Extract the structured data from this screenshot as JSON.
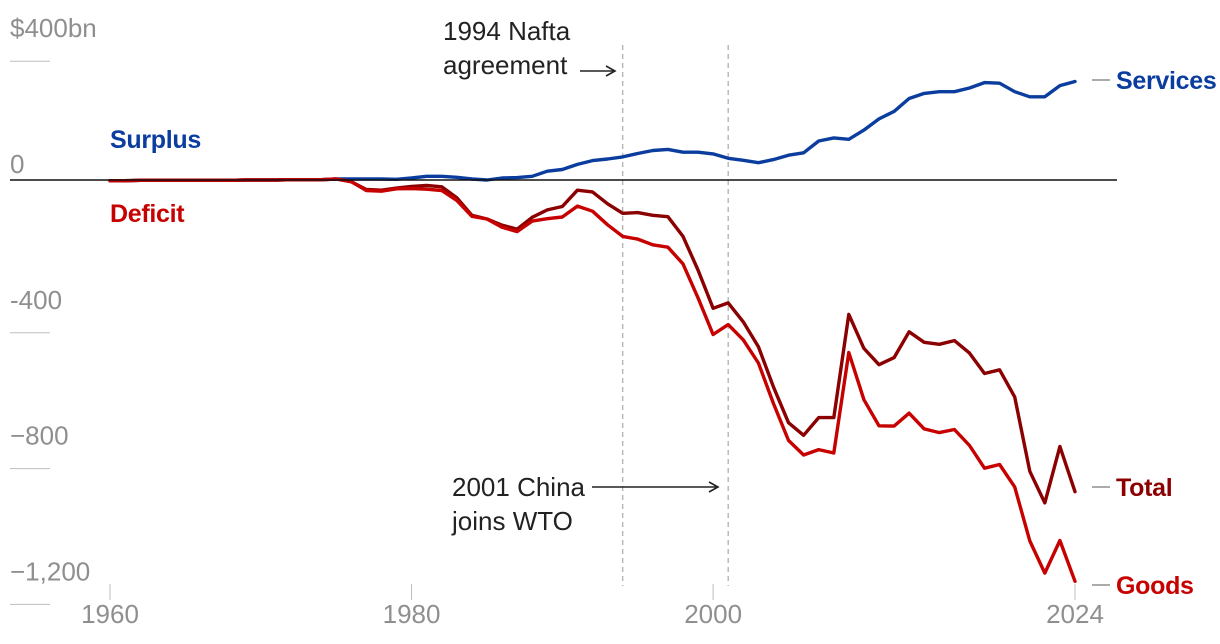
{
  "chart_data": {
    "type": "line",
    "xlim": [
      1960,
      2024
    ],
    "ylim": [
      -1300,
      400
    ],
    "x_ticks": [
      {
        "value": 1960,
        "label": "1960"
      },
      {
        "value": 1980,
        "label": "1980"
      },
      {
        "value": 2000,
        "label": "2000"
      },
      {
        "value": 2024,
        "label": "2024"
      }
    ],
    "y_ticks": [
      {
        "value": 400,
        "label": "$400bn"
      },
      {
        "value": 0,
        "label": "0"
      },
      {
        "value": -400,
        "label": "-400"
      },
      {
        "value": -800,
        "label": "−800"
      },
      {
        "value": -1200,
        "label": "−1,200"
      }
    ],
    "zone_labels": {
      "surplus": {
        "text": "Surplus",
        "color": "#0a3d9e"
      },
      "deficit": {
        "text": "Deficit",
        "color": "#c70000"
      }
    },
    "annotations": [
      {
        "year": 1994,
        "lines": [
          "1994 Nafta",
          "agreement"
        ],
        "arrow": "right"
      },
      {
        "year": 2001,
        "lines": [
          "2001 China",
          "joins WTO"
        ],
        "arrow": "right"
      }
    ],
    "series": [
      {
        "name": "Services",
        "color": "#0a3d9e",
        "x": [
          1960,
          1961,
          1962,
          1963,
          1964,
          1965,
          1966,
          1967,
          1968,
          1969,
          1970,
          1971,
          1972,
          1973,
          1974,
          1975,
          1976,
          1977,
          1978,
          1979,
          1980,
          1981,
          1982,
          1983,
          1984,
          1985,
          1986,
          1987,
          1988,
          1989,
          1990,
          1991,
          1992,
          1993,
          1994,
          1995,
          1996,
          1997,
          1998,
          1999,
          2000,
          2001,
          2002,
          2003,
          2004,
          2005,
          2006,
          2007,
          2008,
          2009,
          2010,
          2011,
          2012,
          2013,
          2014,
          2015,
          2016,
          2017,
          2018,
          2019,
          2020,
          2021,
          2022,
          2023,
          2024
        ],
        "values": [
          -2,
          -2,
          -1,
          -1,
          -1,
          -1,
          -1,
          -1,
          -1,
          0,
          0,
          0,
          1,
          1,
          1,
          3,
          3,
          3,
          3,
          2,
          6,
          11,
          11,
          8,
          3,
          0,
          6,
          7,
          11,
          26,
          31,
          46,
          57,
          62,
          68,
          78,
          87,
          90,
          82,
          82,
          77,
          64,
          58,
          51,
          60,
          73,
          80,
          115,
          124,
          120,
          147,
          180,
          202,
          240,
          255,
          260,
          260,
          271,
          287,
          285,
          260,
          245,
          245,
          278,
          290
        ]
      },
      {
        "name": "Total",
        "color": "#8b0000",
        "x": [
          1960,
          1961,
          1962,
          1963,
          1964,
          1965,
          1966,
          1967,
          1968,
          1969,
          1970,
          1971,
          1972,
          1973,
          1974,
          1975,
          1976,
          1977,
          1978,
          1979,
          1980,
          1981,
          1982,
          1983,
          1984,
          1985,
          1986,
          1987,
          1988,
          1989,
          1990,
          1991,
          1992,
          1993,
          1994,
          1995,
          1996,
          1997,
          1998,
          1999,
          2000,
          2001,
          2002,
          2003,
          2004,
          2005,
          2006,
          2007,
          2008,
          2009,
          2010,
          2011,
          2012,
          2013,
          2014,
          2015,
          2016,
          2017,
          2018,
          2019,
          2020,
          2021,
          2022,
          2023,
          2024
        ],
        "values": [
          -2,
          -2,
          -1,
          -1,
          -1,
          -1,
          -1,
          -1,
          -1,
          0,
          0,
          0,
          1,
          1,
          1,
          3,
          -5,
          -28,
          -30,
          -24,
          -19,
          -16,
          -20,
          -52,
          -104,
          -115,
          -133,
          -145,
          -110,
          -88,
          -78,
          -30,
          -35,
          -70,
          -98,
          -96,
          -104,
          -108,
          -166,
          -265,
          -378,
          -362,
          -418,
          -491,
          -609,
          -715,
          -752,
          -700,
          -700,
          -396,
          -496,
          -544,
          -523,
          -447,
          -478,
          -484,
          -473,
          -510,
          -570,
          -559,
          -639,
          -858,
          -951,
          -785,
          -918
        ]
      },
      {
        "name": "Goods",
        "color": "#c70000",
        "x": [
          1960,
          1961,
          1962,
          1963,
          1964,
          1965,
          1966,
          1967,
          1968,
          1969,
          1970,
          1971,
          1972,
          1973,
          1974,
          1975,
          1976,
          1977,
          1978,
          1979,
          1980,
          1981,
          1982,
          1983,
          1984,
          1985,
          1986,
          1987,
          1988,
          1989,
          1990,
          1991,
          1992,
          1993,
          1994,
          1995,
          1996,
          1997,
          1998,
          1999,
          2000,
          2001,
          2002,
          2003,
          2004,
          2005,
          2006,
          2007,
          2008,
          2009,
          2010,
          2011,
          2012,
          2013,
          2014,
          2015,
          2016,
          2017,
          2018,
          2019,
          2020,
          2021,
          2022,
          2023,
          2024
        ],
        "values": [
          -2,
          -2,
          -1,
          -1,
          -1,
          -1,
          -1,
          -1,
          -1,
          0,
          0,
          0,
          1,
          1,
          1,
          3,
          -5,
          -31,
          -33,
          -26,
          -25,
          -27,
          -31,
          -60,
          -107,
          -115,
          -139,
          -152,
          -121,
          -114,
          -109,
          -77,
          -92,
          -132,
          -166,
          -174,
          -191,
          -198,
          -247,
          -347,
          -455,
          -426,
          -471,
          -539,
          -658,
          -767,
          -810,
          -794,
          -804,
          -508,
          -647,
          -724,
          -725,
          -687,
          -733,
          -744,
          -735,
          -782,
          -849,
          -838,
          -904,
          -1063,
          -1158,
          -1062,
          -1182
        ]
      }
    ]
  }
}
